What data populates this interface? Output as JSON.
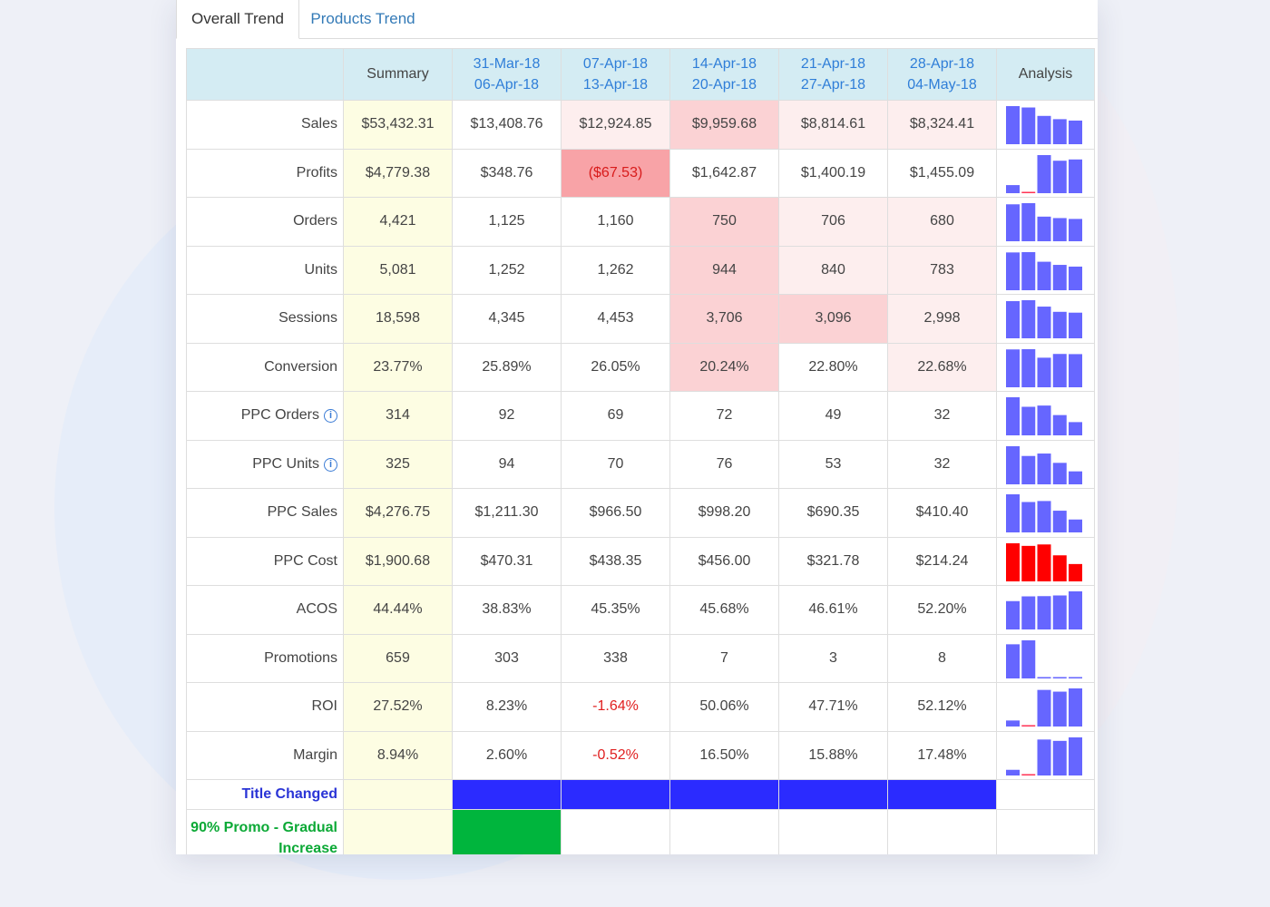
{
  "tabs": [
    {
      "label": "Overall Trend",
      "active": true
    },
    {
      "label": "Products Trend",
      "active": false
    }
  ],
  "header": {
    "summary": "Summary",
    "analysis": "Analysis",
    "weeks": [
      {
        "start": "31-Mar-18",
        "end": "06-Apr-18"
      },
      {
        "start": "07-Apr-18",
        "end": "13-Apr-18"
      },
      {
        "start": "14-Apr-18",
        "end": "20-Apr-18"
      },
      {
        "start": "21-Apr-18",
        "end": "27-Apr-18"
      },
      {
        "start": "28-Apr-18",
        "end": "04-May-18"
      }
    ]
  },
  "colors": {
    "spark_bar": "#6666ff",
    "spark_bar_cost": "#ff0000",
    "spark_neg": "#ff3355",
    "title_changed_fill": "#2b2bff",
    "promo_fill": "#00b53d"
  },
  "rows": [
    {
      "label": "Sales",
      "info": false,
      "summary": "$53,432.31",
      "values": [
        "$13,408.76",
        "$12,924.85",
        "$9,959.68",
        "$8,814.61",
        "$8,324.41"
      ],
      "nums": [
        13408.76,
        12924.85,
        9959.68,
        8814.61,
        8324.41
      ],
      "bg": [
        "",
        "lightpink",
        "pink",
        "lightpink",
        "lightpink"
      ],
      "neg": [
        false,
        false,
        false,
        false,
        false
      ]
    },
    {
      "label": "Profits",
      "info": false,
      "summary": "$4,779.38",
      "values": [
        "$348.76",
        "($67.53)",
        "$1,642.87",
        "$1,400.19",
        "$1,455.09"
      ],
      "nums": [
        348.76,
        -67.53,
        1642.87,
        1400.19,
        1455.09
      ],
      "bg": [
        "",
        "red",
        "",
        "",
        ""
      ],
      "neg": [
        false,
        false,
        false,
        false,
        false
      ]
    },
    {
      "label": "Orders",
      "info": false,
      "summary": "4,421",
      "values": [
        "1,125",
        "1,160",
        "750",
        "706",
        "680"
      ],
      "nums": [
        1125,
        1160,
        750,
        706,
        680
      ],
      "bg": [
        "",
        "",
        "pink",
        "lightpink",
        "lightpink"
      ],
      "neg": [
        false,
        false,
        false,
        false,
        false
      ]
    },
    {
      "label": "Units",
      "info": false,
      "summary": "5,081",
      "values": [
        "1,252",
        "1,262",
        "944",
        "840",
        "783"
      ],
      "nums": [
        1252,
        1262,
        944,
        840,
        783
      ],
      "bg": [
        "",
        "",
        "pink",
        "lightpink",
        "lightpink"
      ],
      "neg": [
        false,
        false,
        false,
        false,
        false
      ]
    },
    {
      "label": "Sessions",
      "info": false,
      "summary": "18,598",
      "values": [
        "4,345",
        "4,453",
        "3,706",
        "3,096",
        "2,998"
      ],
      "nums": [
        4345,
        4453,
        3706,
        3096,
        2998
      ],
      "bg": [
        "",
        "",
        "pink",
        "pink",
        "lightpink"
      ],
      "neg": [
        false,
        false,
        false,
        false,
        false
      ]
    },
    {
      "label": "Conversion",
      "info": false,
      "summary": "23.77%",
      "values": [
        "25.89%",
        "26.05%",
        "20.24%",
        "22.80%",
        "22.68%"
      ],
      "nums": [
        25.89,
        26.05,
        20.24,
        22.8,
        22.68
      ],
      "bg": [
        "",
        "",
        "pink",
        "",
        "lightpink"
      ],
      "neg": [
        false,
        false,
        false,
        false,
        false
      ]
    },
    {
      "label": "PPC Orders",
      "info": true,
      "summary": "314",
      "values": [
        "92",
        "69",
        "72",
        "49",
        "32"
      ],
      "nums": [
        92,
        69,
        72,
        49,
        32
      ],
      "bg": [
        "",
        "",
        "",
        "",
        ""
      ],
      "neg": [
        false,
        false,
        false,
        false,
        false
      ]
    },
    {
      "label": "PPC Units",
      "info": true,
      "summary": "325",
      "values": [
        "94",
        "70",
        "76",
        "53",
        "32"
      ],
      "nums": [
        94,
        70,
        76,
        53,
        32
      ],
      "bg": [
        "",
        "",
        "",
        "",
        ""
      ],
      "neg": [
        false,
        false,
        false,
        false,
        false
      ]
    },
    {
      "label": "PPC Sales",
      "info": false,
      "summary": "$4,276.75",
      "values": [
        "$1,211.30",
        "$966.50",
        "$998.20",
        "$690.35",
        "$410.40"
      ],
      "nums": [
        1211.3,
        966.5,
        998.2,
        690.35,
        410.4
      ],
      "bg": [
        "",
        "",
        "",
        "",
        ""
      ],
      "neg": [
        false,
        false,
        false,
        false,
        false
      ]
    },
    {
      "label": "PPC Cost",
      "info": false,
      "summary": "$1,900.68",
      "values": [
        "$470.31",
        "$438.35",
        "$456.00",
        "$321.78",
        "$214.24"
      ],
      "nums": [
        470.31,
        438.35,
        456.0,
        321.78,
        214.24
      ],
      "bg": [
        "",
        "",
        "",
        "",
        ""
      ],
      "neg": [
        false,
        false,
        false,
        false,
        false
      ],
      "cost": true
    },
    {
      "label": "ACOS",
      "info": false,
      "summary": "44.44%",
      "values": [
        "38.83%",
        "45.35%",
        "45.68%",
        "46.61%",
        "52.20%"
      ],
      "nums": [
        38.83,
        45.35,
        45.68,
        46.61,
        52.2
      ],
      "bg": [
        "",
        "",
        "",
        "",
        ""
      ],
      "neg": [
        false,
        false,
        false,
        false,
        false
      ]
    },
    {
      "label": "Promotions",
      "info": false,
      "summary": "659",
      "values": [
        "303",
        "338",
        "7",
        "3",
        "8"
      ],
      "nums": [
        303,
        338,
        7,
        3,
        8
      ],
      "bg": [
        "",
        "",
        "",
        "",
        ""
      ],
      "neg": [
        false,
        false,
        false,
        false,
        false
      ]
    },
    {
      "label": "ROI",
      "info": false,
      "summary": "27.52%",
      "values": [
        "8.23%",
        "-1.64%",
        "50.06%",
        "47.71%",
        "52.12%"
      ],
      "nums": [
        8.23,
        -1.64,
        50.06,
        47.71,
        52.12
      ],
      "bg": [
        "",
        "",
        "",
        "",
        ""
      ],
      "neg": [
        false,
        true,
        false,
        false,
        false
      ]
    },
    {
      "label": "Margin",
      "info": false,
      "summary": "8.94%",
      "values": [
        "2.60%",
        "-0.52%",
        "16.50%",
        "15.88%",
        "17.48%"
      ],
      "nums": [
        2.6,
        -0.52,
        16.5,
        15.88,
        17.48
      ],
      "bg": [
        "",
        "",
        "",
        "",
        ""
      ],
      "neg": [
        false,
        true,
        false,
        false,
        false
      ]
    }
  ],
  "markers": [
    {
      "label": "Title Changed",
      "type": "title",
      "filled": [
        true,
        true,
        true,
        true,
        true
      ]
    },
    {
      "label": "90% Promo - Gradual Increase",
      "type": "promo",
      "filled": [
        true,
        false,
        false,
        false,
        false
      ]
    }
  ]
}
